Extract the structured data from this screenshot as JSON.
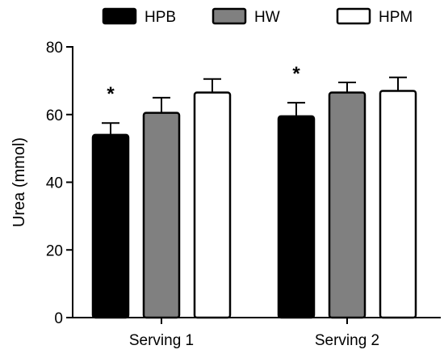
{
  "chart_data": {
    "type": "bar",
    "categories": [
      "Serving 1",
      "Serving 2"
    ],
    "series": [
      {
        "name": "HPB",
        "fill": "#000000",
        "values": [
          54,
          59.5
        ],
        "errors": [
          3.5,
          4
        ]
      },
      {
        "name": "HW",
        "fill": "#808080",
        "values": [
          60.5,
          66.5
        ],
        "errors": [
          4.5,
          3
        ]
      },
      {
        "name": "HPM",
        "fill": "#ffffff",
        "values": [
          66.5,
          67
        ],
        "errors": [
          4,
          4
        ]
      }
    ],
    "annotations": [
      {
        "text": "*",
        "category": 0,
        "series": 0
      },
      {
        "text": "*",
        "category": 1,
        "series": 0
      }
    ],
    "xlabel": "",
    "ylabel": "Urea (mmol)",
    "ylim": [
      0,
      80
    ],
    "yticks": [
      0,
      20,
      40,
      60,
      80
    ],
    "grid": false,
    "legend_position": "top"
  }
}
